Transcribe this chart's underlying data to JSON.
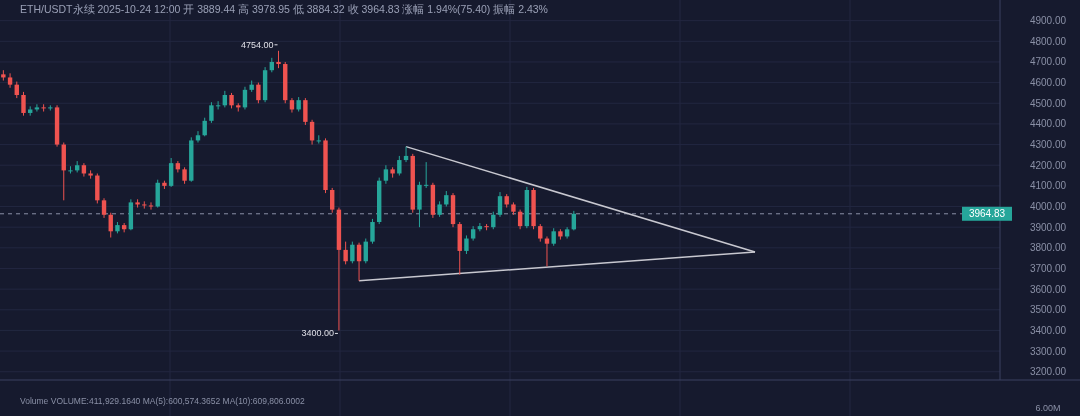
{
  "chart_data": {
    "type": "candlestick",
    "title": "ETH/USDT永续 2025-10-24 12:00 开 3889.44 高 3978.95 低 3884.32 收 3964.83 涨幅 1.94%(75.40) 振幅 2.43%",
    "categories": [
      null,
      null,
      null,
      null,
      null,
      null,
      null,
      null,
      null,
      null,
      null,
      null,
      null,
      null,
      null,
      null,
      null,
      null,
      null,
      null,
      null,
      null,
      null,
      null,
      null,
      null,
      null,
      null,
      null,
      null,
      null,
      null,
      null,
      null,
      null,
      null,
      null,
      null,
      null,
      null,
      null,
      null,
      null,
      null,
      null,
      null,
      null,
      null,
      null,
      null,
      null,
      null,
      null,
      null,
      null,
      null,
      null,
      null,
      null,
      null,
      null,
      null,
      null,
      null,
      null,
      null,
      null,
      null,
      null,
      null,
      null,
      null,
      null,
      null,
      null,
      null,
      null,
      null,
      null,
      null,
      null,
      null,
      null,
      null,
      null,
      null,
      null,
      null,
      null,
      null,
      null,
      null,
      null,
      null,
      null,
      null,
      null,
      null,
      null,
      null,
      null,
      null,
      null,
      null,
      null,
      null,
      null,
      null,
      null,
      null,
      null,
      null,
      null,
      null,
      null,
      null,
      null,
      null,
      null,
      null,
      null,
      null,
      null,
      null,
      null,
      null,
      null,
      null,
      null,
      null,
      null,
      null,
      null,
      null,
      null,
      null,
      null,
      null,
      null,
      null,
      null,
      null,
      null,
      null,
      null,
      null,
      null,
      null,
      null
    ],
    "ohlc": [
      [
        4640,
        4660,
        4610,
        4625
      ],
      [
        4625,
        4645,
        4575,
        4590
      ],
      [
        4590,
        4605,
        4525,
        4540
      ],
      [
        4540,
        4555,
        4440,
        4453
      ],
      [
        4453,
        4485,
        4440,
        4470
      ],
      [
        4470,
        4495,
        4460,
        4480
      ],
      [
        4480,
        4495,
        4460,
        4475
      ],
      [
        4475,
        4490,
        4465,
        4480
      ],
      [
        4480,
        4490,
        4290,
        4300
      ],
      [
        4300,
        4310,
        4030,
        4175
      ],
      [
        4175,
        4195,
        4160,
        4175
      ],
      [
        4175,
        4220,
        4165,
        4200
      ],
      [
        4200,
        4210,
        4145,
        4160
      ],
      [
        4160,
        4175,
        4135,
        4150
      ],
      [
        4150,
        4160,
        4015,
        4030
      ],
      [
        4030,
        4040,
        3945,
        3960
      ],
      [
        3960,
        3970,
        3850,
        3880
      ],
      [
        3880,
        3925,
        3870,
        3910
      ],
      [
        3910,
        3920,
        3875,
        3890
      ],
      [
        3890,
        4035,
        3885,
        4020
      ],
      [
        4020,
        4035,
        3995,
        4010
      ],
      [
        4010,
        4025,
        3990,
        4005
      ],
      [
        4005,
        4020,
        3985,
        4000
      ],
      [
        4000,
        4130,
        3995,
        4115
      ],
      [
        4115,
        4125,
        4085,
        4100
      ],
      [
        4100,
        4235,
        4095,
        4210
      ],
      [
        4210,
        4220,
        4165,
        4180
      ],
      [
        4180,
        4190,
        4110,
        4125
      ],
      [
        4125,
        4335,
        4120,
        4320
      ],
      [
        4320,
        4365,
        4310,
        4345
      ],
      [
        4345,
        4430,
        4340,
        4415
      ],
      [
        4415,
        4505,
        4405,
        4490
      ],
      [
        4490,
        4510,
        4470,
        4490
      ],
      [
        4490,
        4560,
        4480,
        4540
      ],
      [
        4540,
        4550,
        4475,
        4490
      ],
      [
        4490,
        4500,
        4460,
        4480
      ],
      [
        4480,
        4580,
        4470,
        4565
      ],
      [
        4565,
        4610,
        4555,
        4590
      ],
      [
        4590,
        4600,
        4500,
        4515
      ],
      [
        4515,
        4675,
        4505,
        4660
      ],
      [
        4660,
        4720,
        4650,
        4700
      ],
      [
        4700,
        4754,
        4670,
        4690
      ],
      [
        4690,
        4700,
        4500,
        4515
      ],
      [
        4515,
        4525,
        4455,
        4470
      ],
      [
        4470,
        4530,
        4460,
        4515
      ],
      [
        4515,
        4525,
        4395,
        4410
      ],
      [
        4410,
        4420,
        4300,
        4320
      ],
      [
        4320,
        4345,
        4305,
        4320
      ],
      [
        4320,
        4330,
        4065,
        4080
      ],
      [
        4080,
        4090,
        3970,
        3985
      ],
      [
        3985,
        3995,
        3400,
        3790
      ],
      [
        3790,
        3830,
        3720,
        3735
      ],
      [
        3735,
        3830,
        3725,
        3815
      ],
      [
        3815,
        3825,
        3640,
        3735
      ],
      [
        3735,
        3845,
        3725,
        3830
      ],
      [
        3830,
        3940,
        3820,
        3925
      ],
      [
        3925,
        4140,
        3915,
        4125
      ],
      [
        4125,
        4200,
        4110,
        4180
      ],
      [
        4180,
        4190,
        4140,
        4160
      ],
      [
        4160,
        4245,
        4150,
        4225
      ],
      [
        4225,
        4290,
        4215,
        4245
      ],
      [
        4245,
        4255,
        3970,
        3985
      ],
      [
        3985,
        4120,
        3900,
        4105
      ],
      [
        4105,
        4215,
        4090,
        4105
      ],
      [
        4105,
        4115,
        3945,
        3960
      ],
      [
        3960,
        4025,
        3950,
        4010
      ],
      [
        4010,
        4075,
        4000,
        4055
      ],
      [
        4055,
        4065,
        3900,
        3915
      ],
      [
        3915,
        3925,
        3670,
        3785
      ],
      [
        3785,
        3860,
        3770,
        3845
      ],
      [
        3845,
        3905,
        3835,
        3890
      ],
      [
        3890,
        3920,
        3880,
        3905
      ],
      [
        3905,
        3915,
        3885,
        3900
      ],
      [
        3900,
        3975,
        3890,
        3960
      ],
      [
        3960,
        4070,
        3950,
        4050
      ],
      [
        4050,
        4060,
        3995,
        4010
      ],
      [
        4010,
        4020,
        3960,
        3975
      ],
      [
        3975,
        3985,
        3890,
        3905
      ],
      [
        3905,
        4095,
        3895,
        4080
      ],
      [
        4080,
        4090,
        3890,
        3905
      ],
      [
        3905,
        3915,
        3830,
        3845
      ],
      [
        3845,
        3855,
        3710,
        3820
      ],
      [
        3820,
        3895,
        3810,
        3880
      ],
      [
        3880,
        3890,
        3840,
        3855
      ],
      [
        3855,
        3900,
        3845,
        3889.44
      ],
      [
        3889.44,
        3978.95,
        3884.32,
        3964.83
      ],
      null,
      null,
      null,
      null,
      null,
      null,
      null,
      null,
      null,
      null,
      null,
      null,
      null,
      null,
      null,
      null,
      null,
      null,
      null,
      null,
      null,
      null,
      null,
      null,
      null,
      null,
      null,
      null,
      null,
      null,
      null,
      null,
      null,
      null,
      null,
      null,
      null,
      null,
      null,
      null,
      null,
      null,
      null,
      null,
      null,
      null,
      null,
      null,
      null,
      null,
      null,
      null,
      null,
      null,
      null,
      null,
      null,
      null,
      null,
      null,
      null,
      null,
      null
    ],
    "series": [
      {
        "type": "line",
        "color": "#c8c8d0",
        "values": [
          null,
          null,
          null,
          null,
          null,
          null,
          null,
          null,
          null,
          null,
          null,
          null,
          null,
          null,
          null,
          null,
          null,
          null,
          null,
          null,
          null,
          null,
          null,
          null,
          null,
          null,
          null,
          null,
          null,
          null,
          null,
          null,
          null,
          null,
          null,
          null,
          null,
          null,
          null,
          null,
          null,
          null,
          null,
          null,
          null,
          null,
          null,
          null,
          null,
          null,
          null,
          null,
          null,
          null,
          null,
          null,
          null,
          null,
          null,
          null,
          4290,
          null,
          null,
          null,
          null,
          null,
          null,
          null,
          null,
          null,
          null,
          null,
          null,
          null,
          null,
          null,
          null,
          null,
          null,
          null,
          null,
          null,
          null,
          null,
          null,
          null,
          null,
          null,
          null,
          null,
          null,
          null,
          null,
          null,
          null,
          null,
          null,
          null,
          null,
          null,
          null,
          null,
          null,
          null,
          null,
          null,
          null,
          null,
          null,
          null,
          null,
          null,
          3780,
          null,
          null,
          null,
          null,
          null,
          null,
          null,
          null,
          null,
          null,
          null,
          null,
          null,
          null,
          null,
          null,
          null,
          null,
          null,
          null,
          null,
          null,
          null,
          null,
          null,
          null,
          null,
          null,
          null,
          null,
          null,
          null,
          null,
          null,
          null,
          null
        ]
      },
      {
        "type": "line",
        "color": "#c8c8d0",
        "values": [
          null,
          null,
          null,
          null,
          null,
          null,
          null,
          null,
          null,
          null,
          null,
          null,
          null,
          null,
          null,
          null,
          null,
          null,
          null,
          null,
          null,
          null,
          null,
          null,
          null,
          null,
          null,
          null,
          null,
          null,
          null,
          null,
          null,
          null,
          null,
          null,
          null,
          null,
          null,
          null,
          null,
          null,
          null,
          null,
          null,
          null,
          null,
          null,
          null,
          null,
          null,
          null,
          null,
          3640,
          null,
          null,
          null,
          null,
          null,
          null,
          null,
          null,
          null,
          null,
          null,
          null,
          null,
          null,
          null,
          null,
          null,
          null,
          null,
          null,
          null,
          null,
          null,
          null,
          null,
          null,
          null,
          null,
          null,
          null,
          null,
          null,
          null,
          null,
          null,
          null,
          null,
          null,
          null,
          null,
          null,
          null,
          null,
          null,
          null,
          null,
          null,
          null,
          null,
          null,
          null,
          null,
          null,
          null,
          null,
          null,
          null,
          null,
          3780,
          null,
          null,
          null,
          null,
          null,
          null,
          null,
          null,
          null,
          null,
          null,
          null,
          null,
          null,
          null,
          null,
          null,
          null,
          null,
          null,
          null,
          null,
          null,
          null,
          null,
          null,
          null,
          null,
          null,
          null,
          null,
          null,
          null,
          null,
          null,
          null
        ]
      }
    ],
    "ylim": [
      3160,
      5000
    ],
    "yticks": [
      {
        "value": 3200,
        "label": "3200.00"
      },
      {
        "value": 3300,
        "label": "3300.00"
      },
      {
        "value": 3400,
        "label": "3400.00"
      },
      {
        "value": 3500,
        "label": "3500.00"
      },
      {
        "value": 3600,
        "label": "3600.00"
      },
      {
        "value": 3700,
        "label": "3700.00"
      },
      {
        "value": 3800,
        "label": "3800.00"
      },
      {
        "value": 3900,
        "label": "3900.00"
      },
      {
        "value": 4000,
        "label": "4000.00"
      },
      {
        "value": 4100,
        "label": "4100.00"
      },
      {
        "value": 4200,
        "label": "4200.00"
      },
      {
        "value": 4300,
        "label": "4300.00"
      },
      {
        "value": 4400,
        "label": "4400.00"
      },
      {
        "value": 4500,
        "label": "4500.00"
      },
      {
        "value": 4600,
        "label": "4600.00"
      },
      {
        "value": 4700,
        "label": "4700.00"
      },
      {
        "value": 4800,
        "label": "4800.00"
      },
      {
        "value": 4900,
        "label": "4900.00"
      }
    ],
    "ref_lines": [
      {
        "axis": "y",
        "value": 3964.83,
        "label": "3964.83",
        "color": "#8a90a6",
        "line_style": "dashed"
      }
    ],
    "annotations": [
      "4754.00",
      "3400.00",
      "Volume VOLUME:411,929.1640 MA(5):600,574.3652 MA(10):609,806.0002",
      "6.00M"
    ],
    "grid": true
  }
}
